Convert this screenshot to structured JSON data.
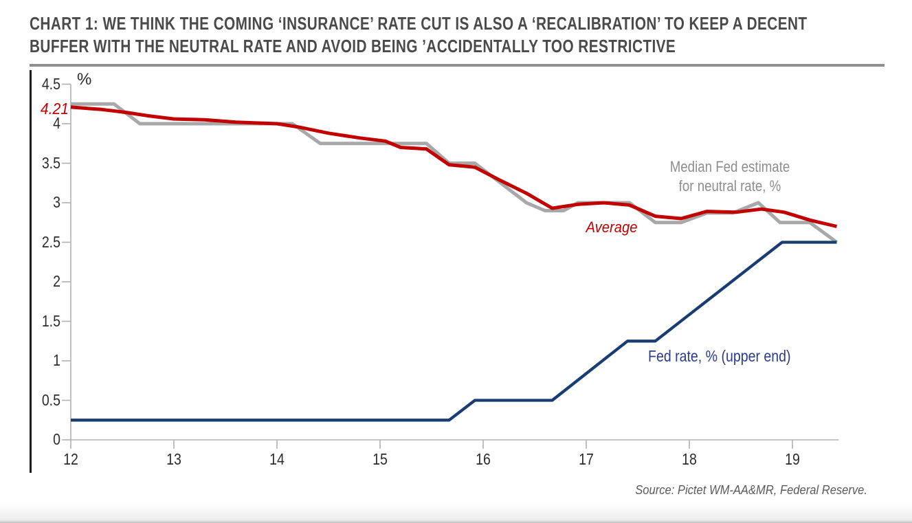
{
  "title": {
    "line1": "CHART 1: WE THINK THE COMING ‘INSURANCE’ RATE CUT IS ALSO A ‘RECALIBRATION’ TO KEEP A DECENT",
    "line2": "BUFFER WITH THE NEUTRAL RATE AND AVOID BEING ’ACCIDENTALLY TOO RESTRICTIVE"
  },
  "annotations": {
    "percent_label": "%",
    "start_value_label": "4.21",
    "median_label_line1": "Median Fed estimate",
    "median_label_line2": "for neutral rate, %",
    "average_label": "Average",
    "fed_rate_label": "Fed rate, % (upper end)"
  },
  "source": "Source: Pictet WM-AA&MR, Federal Reserve.",
  "colors": {
    "red": "#c10000",
    "gray_line": "#a8a8a8",
    "navy_line": "#193c73",
    "navy_label": "#2c3c8c",
    "gray_label": "#8d8d8d",
    "axis": "#b0b0b0",
    "tick_text": "#2b2b2b",
    "title_text": "#4a4a4a"
  },
  "chart_data": {
    "type": "line",
    "title": "We think the coming 'insurance' rate cut is also a 'recalibration' to keep a decent buffer with the neutral rate and avoid being accidentally too restrictive",
    "xlabel": "",
    "ylabel": "%",
    "xlim": [
      12,
      19.45
    ],
    "ylim": [
      0,
      4.5
    ],
    "grid": false,
    "legend_position": "inline-labels",
    "x_ticks": [
      12,
      13,
      14,
      15,
      16,
      17,
      18,
      19
    ],
    "y_tick_labels": [
      "4.5",
      "4",
      "3.5",
      "3",
      "2.5",
      "2",
      "1.5",
      "1",
      "0.5",
      "0"
    ],
    "series": [
      {
        "name": "Median Fed estimate for neutral rate, %",
        "color": "#a8a8a8",
        "stroke_width": 5,
        "points": [
          [
            12.0,
            4.25
          ],
          [
            12.42,
            4.25
          ],
          [
            12.67,
            4.0
          ],
          [
            14.15,
            4.0
          ],
          [
            14.42,
            3.75
          ],
          [
            15.45,
            3.75
          ],
          [
            15.67,
            3.5
          ],
          [
            15.92,
            3.5
          ],
          [
            16.42,
            3.0
          ],
          [
            16.6,
            2.9
          ],
          [
            16.78,
            2.9
          ],
          [
            16.92,
            3.0
          ],
          [
            17.42,
            3.0
          ],
          [
            17.67,
            2.75
          ],
          [
            17.92,
            2.75
          ],
          [
            18.17,
            2.87
          ],
          [
            18.42,
            2.87
          ],
          [
            18.67,
            3.0
          ],
          [
            18.88,
            2.75
          ],
          [
            19.17,
            2.75
          ],
          [
            19.43,
            2.5
          ]
        ]
      },
      {
        "name": "Average",
        "color": "#c10000",
        "stroke_width": 5,
        "points": [
          [
            12.0,
            4.21
          ],
          [
            12.3,
            4.18
          ],
          [
            12.55,
            4.14
          ],
          [
            12.75,
            4.1
          ],
          [
            13.0,
            4.06
          ],
          [
            13.3,
            4.05
          ],
          [
            13.6,
            4.02
          ],
          [
            14.0,
            4.0
          ],
          [
            14.2,
            3.96
          ],
          [
            14.5,
            3.88
          ],
          [
            14.8,
            3.82
          ],
          [
            15.05,
            3.78
          ],
          [
            15.2,
            3.7
          ],
          [
            15.45,
            3.68
          ],
          [
            15.67,
            3.48
          ],
          [
            15.92,
            3.45
          ],
          [
            16.17,
            3.28
          ],
          [
            16.42,
            3.12
          ],
          [
            16.67,
            2.93
          ],
          [
            16.92,
            2.98
          ],
          [
            17.17,
            3.0
          ],
          [
            17.42,
            2.97
          ],
          [
            17.67,
            2.83
          ],
          [
            17.92,
            2.8
          ],
          [
            18.17,
            2.89
          ],
          [
            18.45,
            2.88
          ],
          [
            18.7,
            2.92
          ],
          [
            18.92,
            2.88
          ],
          [
            19.17,
            2.78
          ],
          [
            19.43,
            2.7
          ]
        ]
      },
      {
        "name": "Fed rate, % (upper end)",
        "color": "#193c73",
        "stroke_width": 4.3,
        "points": [
          [
            12.0,
            0.25
          ],
          [
            15.67,
            0.25
          ],
          [
            15.92,
            0.5
          ],
          [
            16.67,
            0.5
          ],
          [
            17.4,
            1.25
          ],
          [
            17.67,
            1.25
          ],
          [
            18.9,
            2.5
          ],
          [
            19.43,
            2.5
          ]
        ]
      }
    ]
  }
}
